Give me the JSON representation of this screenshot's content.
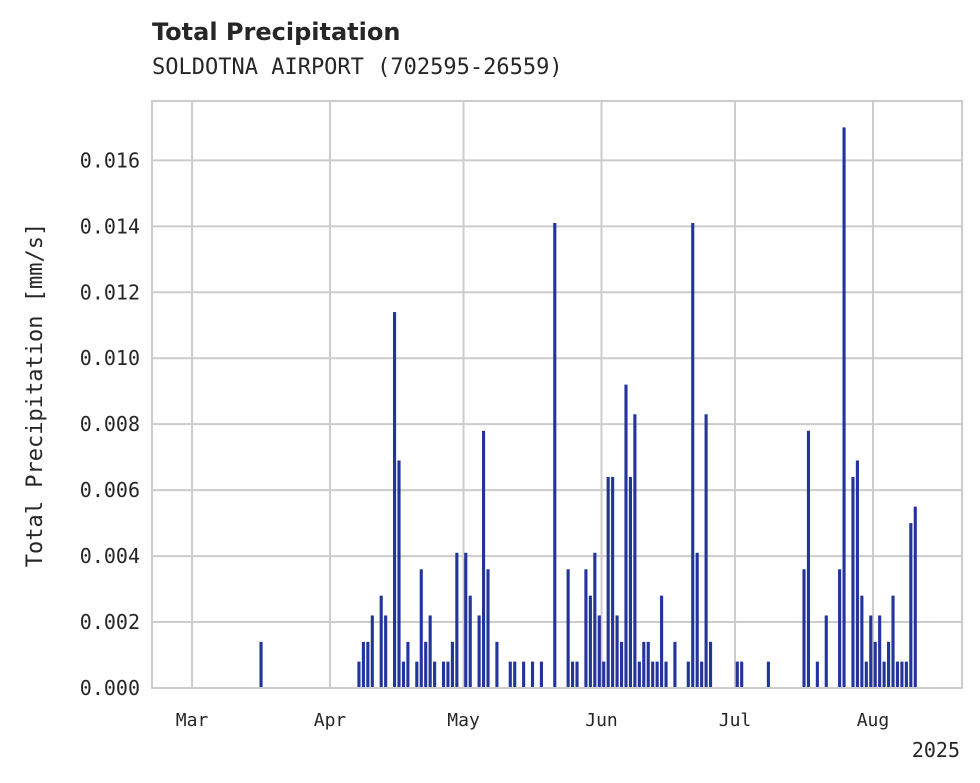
{
  "chart_data": {
    "type": "bar",
    "title": "Total Precipitation",
    "subtitle": "SOLDOTNA AIRPORT (702595-26559)",
    "xlabel": "",
    "ylabel": "Total Precipitation [mm/s]",
    "x_offset_label": "2025",
    "grid": true,
    "bar_color": "#23349c",
    "x_range": [
      "2025-02-20",
      "2025-08-21"
    ],
    "ylim": [
      0.0,
      0.0178
    ],
    "y_ticks": [
      0.0,
      0.002,
      0.004,
      0.006,
      0.008,
      0.01,
      0.012,
      0.014,
      0.016
    ],
    "y_tick_labels": [
      "0.000",
      "0.002",
      "0.004",
      "0.006",
      "0.008",
      "0.010",
      "0.012",
      "0.014",
      "0.016"
    ],
    "x_ticks": [
      "2025-03-01",
      "2025-04-01",
      "2025-05-01",
      "2025-06-01",
      "2025-07-01",
      "2025-08-01"
    ],
    "x_tick_labels": [
      "Mar",
      "Apr",
      "May",
      "Jun",
      "Jul",
      "Aug"
    ],
    "series": [
      {
        "name": "Total Precipitation",
        "x": [
          "2025-03-16",
          "2025-04-07",
          "2025-04-08",
          "2025-04-09",
          "2025-04-10",
          "2025-04-12",
          "2025-04-13",
          "2025-04-15",
          "2025-04-16",
          "2025-04-17",
          "2025-04-18",
          "2025-04-20",
          "2025-04-21",
          "2025-04-22",
          "2025-04-23",
          "2025-04-24",
          "2025-04-26",
          "2025-04-27",
          "2025-04-28",
          "2025-04-29",
          "2025-05-01",
          "2025-05-02",
          "2025-05-04",
          "2025-05-05",
          "2025-05-06",
          "2025-05-08",
          "2025-05-11",
          "2025-05-12",
          "2025-05-14",
          "2025-05-16",
          "2025-05-18",
          "2025-05-21",
          "2025-05-24",
          "2025-05-25",
          "2025-05-26",
          "2025-05-28",
          "2025-05-29",
          "2025-05-30",
          "2025-05-31",
          "2025-06-01",
          "2025-06-02",
          "2025-06-03",
          "2025-06-04",
          "2025-06-05",
          "2025-06-06",
          "2025-06-07",
          "2025-06-08",
          "2025-06-09",
          "2025-06-10",
          "2025-06-11",
          "2025-06-12",
          "2025-06-13",
          "2025-06-14",
          "2025-06-15",
          "2025-06-17",
          "2025-06-20",
          "2025-06-21",
          "2025-06-22",
          "2025-06-23",
          "2025-06-24",
          "2025-06-25",
          "2025-07-01",
          "2025-07-02",
          "2025-07-08",
          "2025-07-16",
          "2025-07-17",
          "2025-07-19",
          "2025-07-21",
          "2025-07-24",
          "2025-07-25",
          "2025-07-27",
          "2025-07-28",
          "2025-07-29",
          "2025-07-30",
          "2025-07-31",
          "2025-08-01",
          "2025-08-02",
          "2025-08-03",
          "2025-08-04",
          "2025-08-05",
          "2025-08-06",
          "2025-08-07",
          "2025-08-08",
          "2025-08-09",
          "2025-08-10"
        ],
        "values": [
          0.0014,
          0.0008,
          0.0014,
          0.0014,
          0.0022,
          0.0028,
          0.0022,
          0.0114,
          0.0069,
          0.0008,
          0.0014,
          0.0008,
          0.0036,
          0.0014,
          0.0022,
          0.0008,
          0.0008,
          0.0008,
          0.0014,
          0.0041,
          0.0041,
          0.0028,
          0.0022,
          0.0078,
          0.0036,
          0.0014,
          0.0008,
          0.0008,
          0.0008,
          0.0008,
          0.0008,
          0.0141,
          0.0036,
          0.0008,
          0.0008,
          0.0036,
          0.0028,
          0.0041,
          0.0022,
          0.0008,
          0.0064,
          0.0064,
          0.0022,
          0.0014,
          0.0092,
          0.0064,
          0.0083,
          0.0008,
          0.0014,
          0.0014,
          0.0008,
          0.0008,
          0.0028,
          0.0008,
          0.0014,
          0.0008,
          0.0141,
          0.0041,
          0.0008,
          0.0083,
          0.0014,
          0.0008,
          0.0008,
          0.0008,
          0.0036,
          0.0078,
          0.0008,
          0.0022,
          0.0036,
          0.017,
          0.0064,
          0.0069,
          0.0028,
          0.0008,
          0.0022,
          0.0014,
          0.0022,
          0.0008,
          0.0014,
          0.0028,
          0.0008,
          0.0008,
          0.0008,
          0.005,
          0.0055
        ]
      }
    ]
  }
}
